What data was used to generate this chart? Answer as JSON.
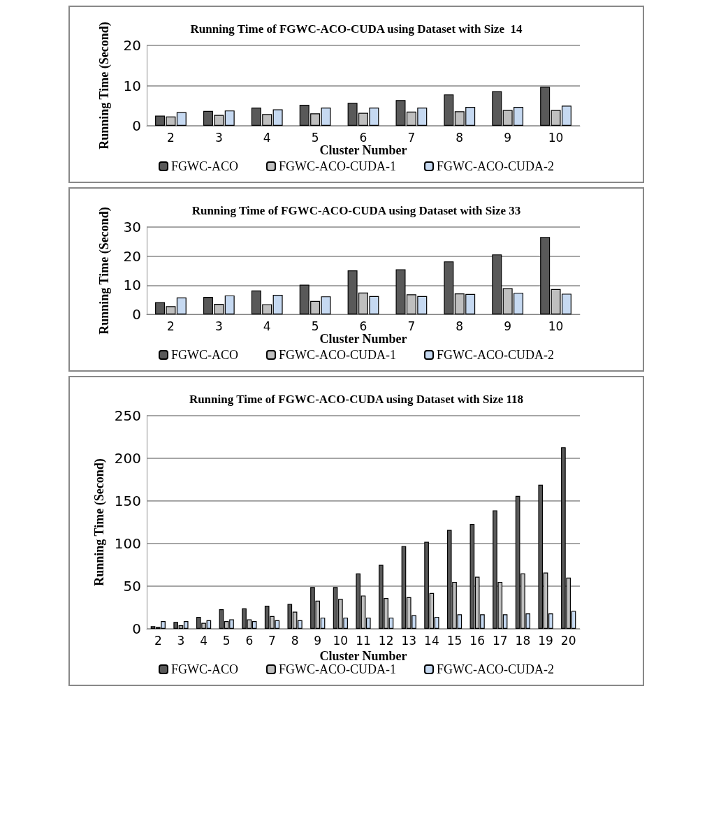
{
  "chart_data": [
    {
      "type": "bar",
      "title": "Running Time of FGWC-ACO-CUDA using Dataset with Size  14",
      "xlabel": "Cluster Number",
      "ylabel": "Running Time (Second)",
      "categories": [
        "2",
        "3",
        "4",
        "5",
        "6",
        "7",
        "8",
        "9",
        "10"
      ],
      "ylim": [
        0,
        20
      ],
      "yticks": [
        0,
        10,
        20
      ],
      "grid": "y",
      "legend": "bottom",
      "series": [
        {
          "name": "FGWC-ACO",
          "color": "#595959",
          "values": [
            2.5,
            3.7,
            4.5,
            5.2,
            5.7,
            6.4,
            7.8,
            8.6,
            9.7
          ]
        },
        {
          "name": "FGWC-ACO-CUDA-1",
          "color": "#bfbfbf",
          "values": [
            2.3,
            2.7,
            2.9,
            3.1,
            3.2,
            3.5,
            3.6,
            3.9,
            3.9
          ]
        },
        {
          "name": "FGWC-ACO-CUDA-2",
          "color": "#c6d9f1",
          "values": [
            3.4,
            3.8,
            4.1,
            4.5,
            4.5,
            4.5,
            4.7,
            4.7,
            5.0
          ]
        }
      ]
    },
    {
      "type": "bar",
      "title": "Running Time of FGWC-ACO-CUDA using Dataset with Size 33",
      "xlabel": "Cluster Number",
      "ylabel": "Running Time (Second)",
      "categories": [
        "2",
        "3",
        "4",
        "5",
        "6",
        "7",
        "8",
        "9",
        "10"
      ],
      "ylim": [
        0,
        30
      ],
      "yticks": [
        0,
        10,
        20,
        30
      ],
      "grid": "y",
      "legend": "bottom",
      "series": [
        {
          "name": "FGWC-ACO",
          "color": "#595959",
          "values": [
            4.2,
            6.0,
            8.2,
            10.2,
            15.1,
            15.5,
            18.2,
            20.6,
            26.6
          ]
        },
        {
          "name": "FGWC-ACO-CUDA-1",
          "color": "#bfbfbf",
          "values": [
            2.8,
            3.6,
            3.5,
            4.6,
            7.5,
            6.9,
            7.2,
            9.0,
            8.7
          ]
        },
        {
          "name": "FGWC-ACO-CUDA-2",
          "color": "#c6d9f1",
          "values": [
            5.8,
            6.5,
            6.7,
            6.2,
            6.3,
            6.3,
            7.0,
            7.4,
            7.1
          ]
        }
      ]
    },
    {
      "type": "bar",
      "title": "Running Time of FGWC-ACO-CUDA using Dataset with Size 118",
      "xlabel": "Cluster Number",
      "ylabel": "Running Time (Second)",
      "categories": [
        "2",
        "3",
        "4",
        "5",
        "6",
        "7",
        "8",
        "9",
        "10",
        "11",
        "12",
        "13",
        "14",
        "15",
        "16",
        "17",
        "18",
        "19",
        "20"
      ],
      "ylim": [
        0,
        250
      ],
      "yticks": [
        0,
        50,
        100,
        150,
        200,
        250
      ],
      "grid": "y",
      "legend": "bottom",
      "series": [
        {
          "name": "FGWC-ACO",
          "color": "#595959",
          "values": [
            3,
            8,
            14,
            23,
            24,
            27,
            29,
            49,
            49,
            65,
            75,
            97,
            102,
            116,
            123,
            139,
            156,
            169,
            213
          ]
        },
        {
          "name": "FGWC-ACO-CUDA-1",
          "color": "#bfbfbf",
          "values": [
            2,
            4,
            7,
            9,
            11,
            15,
            20,
            33,
            35,
            39,
            36,
            37,
            42,
            55,
            61,
            55,
            65,
            66,
            60
          ]
        },
        {
          "name": "FGWC-ACO-CUDA-2",
          "color": "#c6d9f1",
          "values": [
            9,
            9,
            10,
            11,
            9,
            10,
            10,
            13,
            13,
            13,
            13,
            16,
            14,
            17,
            17,
            17,
            18,
            18,
            21
          ]
        }
      ]
    }
  ]
}
